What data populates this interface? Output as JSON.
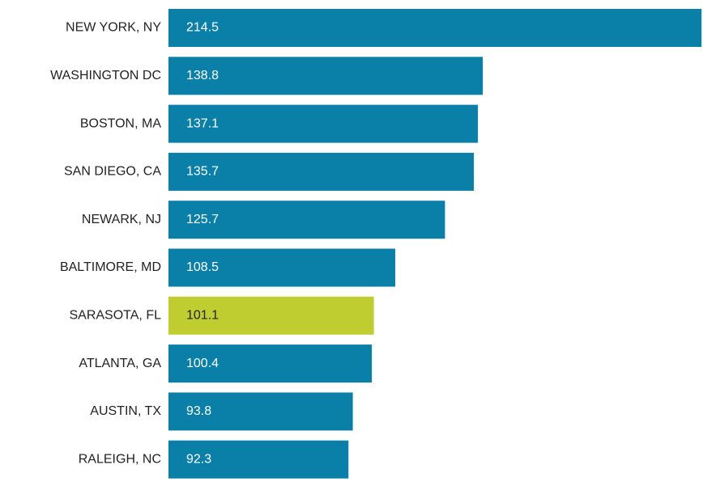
{
  "chart_data": {
    "type": "hbar",
    "categories": [
      "NEW YORK, NY",
      "WASHINGTON DC",
      "BOSTON, MA",
      "SAN DIEGO, CA",
      "NEWARK, NJ",
      "BALTIMORE, MD",
      "SARASOTA, FL",
      "ATLANTA, GA",
      "AUSTIN, TX",
      "RALEIGH, NC"
    ],
    "values": [
      214.5,
      138.8,
      137.1,
      135.7,
      125.7,
      108.5,
      101.1,
      100.4,
      93.8,
      92.3
    ],
    "colors": [
      "#0a80a8",
      "#0a80a8",
      "#0a80a8",
      "#0a80a8",
      "#0a80a8",
      "#0a80a8",
      "#bfcd31",
      "#0a80a8",
      "#0a80a8",
      "#0a80a8"
    ],
    "xlim": [
      30,
      215
    ]
  }
}
